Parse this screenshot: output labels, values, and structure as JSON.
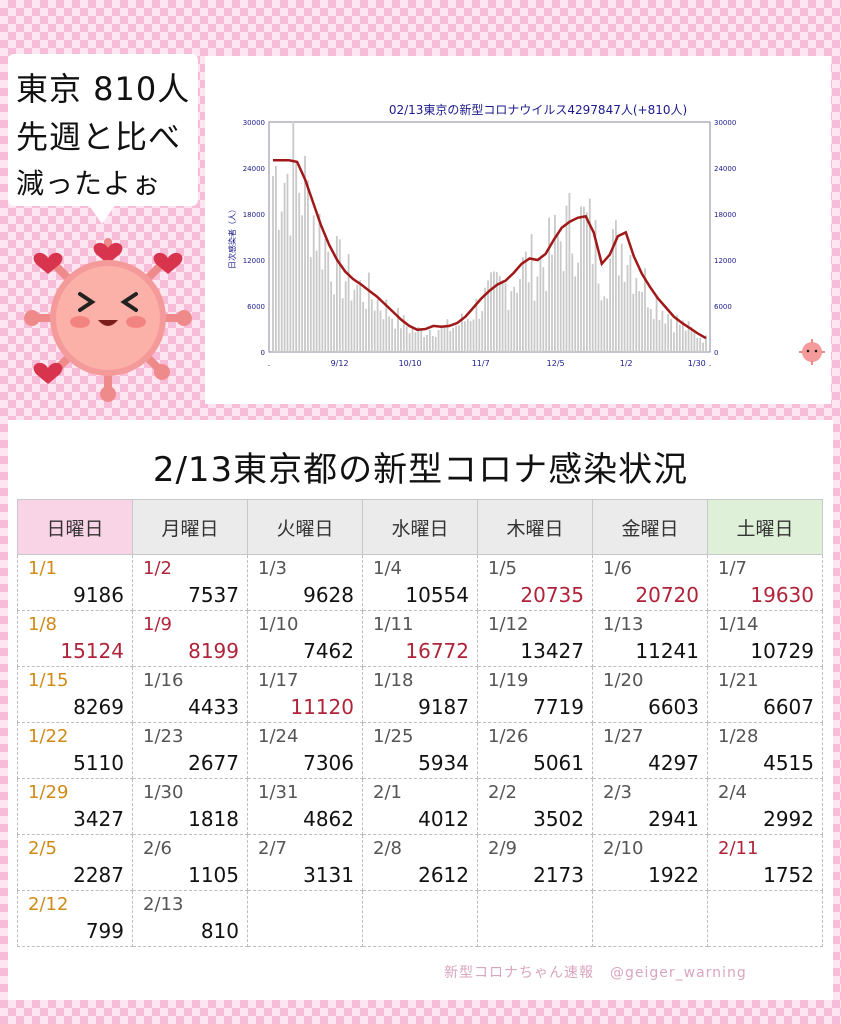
{
  "bubble": {
    "line1": "東京 810人",
    "line2": "先週と比べ",
    "line3": "減ったよぉ"
  },
  "chart_data": {
    "type": "bar",
    "title": "02/13東京の新型コロナウイルス4297847人(+810人)",
    "ylabel": "日次感染者（人）",
    "ylim": [
      0,
      30000
    ],
    "yticks": [
      0,
      6000,
      12000,
      18000,
      24000,
      30000
    ],
    "xtick_labels": [
      ".",
      "9/12",
      "10/10",
      "11/7",
      "12/5",
      "1/2",
      "1/30",
      "."
    ],
    "weekly_avg": [
      25000,
      25000,
      25000,
      24800,
      22500,
      19500,
      16500,
      14000,
      12000,
      10500,
      9500,
      8800,
      8000,
      7200,
      6200,
      5200,
      4200,
      3400,
      2900,
      3000,
      3400,
      3300,
      3400,
      3800,
      4600,
      5800,
      7000,
      8000,
      8800,
      9300,
      10300,
      11500,
      12200,
      12000,
      12800,
      14600,
      16200,
      17000,
      17500,
      17700,
      15600,
      11500,
      12700,
      15100,
      15600,
      12500,
      10200,
      8500,
      7000,
      5800,
      4600,
      3800,
      3100,
      2400,
      1800
    ],
    "series_color": "#a01818",
    "bar_color": "#c9c9c9"
  },
  "table": {
    "title": "2/13東京都の新型コロナ感染状況",
    "headers": [
      "日曜日",
      "月曜日",
      "火曜日",
      "水曜日",
      "木曜日",
      "金曜日",
      "土曜日"
    ],
    "rows": [
      [
        {
          "d": "1/1",
          "v": "9186"
        },
        {
          "d": "1/2",
          "v": "7537"
        },
        {
          "d": "1/3",
          "v": "9628"
        },
        {
          "d": "1/4",
          "v": "10554"
        },
        {
          "d": "1/5",
          "v": "20735"
        },
        {
          "d": "1/6",
          "v": "20720"
        },
        {
          "d": "1/7",
          "v": "19630"
        }
      ],
      [
        {
          "d": "1/8",
          "v": "15124"
        },
        {
          "d": "1/9",
          "v": "8199"
        },
        {
          "d": "1/10",
          "v": "7462"
        },
        {
          "d": "1/11",
          "v": "16772"
        },
        {
          "d": "1/12",
          "v": "13427"
        },
        {
          "d": "1/13",
          "v": "11241"
        },
        {
          "d": "1/14",
          "v": "10729"
        }
      ],
      [
        {
          "d": "1/15",
          "v": "8269"
        },
        {
          "d": "1/16",
          "v": "4433"
        },
        {
          "d": "1/17",
          "v": "11120"
        },
        {
          "d": "1/18",
          "v": "9187"
        },
        {
          "d": "1/19",
          "v": "7719"
        },
        {
          "d": "1/20",
          "v": "6603"
        },
        {
          "d": "1/21",
          "v": "6607"
        }
      ],
      [
        {
          "d": "1/22",
          "v": "5110"
        },
        {
          "d": "1/23",
          "v": "2677"
        },
        {
          "d": "1/24",
          "v": "7306"
        },
        {
          "d": "1/25",
          "v": "5934"
        },
        {
          "d": "1/26",
          "v": "5061"
        },
        {
          "d": "1/27",
          "v": "4297"
        },
        {
          "d": "1/28",
          "v": "4515"
        }
      ],
      [
        {
          "d": "1/29",
          "v": "3427"
        },
        {
          "d": "1/30",
          "v": "1818"
        },
        {
          "d": "1/31",
          "v": "4862"
        },
        {
          "d": "2/1",
          "v": "4012"
        },
        {
          "d": "2/2",
          "v": "3502"
        },
        {
          "d": "2/3",
          "v": "2941"
        },
        {
          "d": "2/4",
          "v": "2992"
        }
      ],
      [
        {
          "d": "2/5",
          "v": "2287"
        },
        {
          "d": "2/6",
          "v": "1105"
        },
        {
          "d": "2/7",
          "v": "3131"
        },
        {
          "d": "2/8",
          "v": "2612"
        },
        {
          "d": "2/9",
          "v": "2173"
        },
        {
          "d": "2/10",
          "v": "1922"
        },
        {
          "d": "2/11",
          "v": "1752"
        }
      ],
      [
        {
          "d": "2/12",
          "v": "799"
        },
        {
          "d": "2/13",
          "v": "810"
        },
        {
          "d": "",
          "v": ""
        },
        {
          "d": "",
          "v": ""
        },
        {
          "d": "",
          "v": ""
        },
        {
          "d": "",
          "v": ""
        },
        {
          "d": "",
          "v": ""
        }
      ]
    ],
    "holiday_dates": [
      "1/2",
      "1/9",
      "2/11"
    ],
    "highlight_values": [
      "20735",
      "20720",
      "19630",
      "15124",
      "8199",
      "16772",
      "11120"
    ]
  },
  "credit": {
    "name": "新型コロナちゃん速報",
    "handle": "@geiger_warning"
  },
  "colors": {
    "accent_red": "#b0243a",
    "sunday_orange": "#d08a16",
    "background_pink": "#f7bcd8"
  }
}
